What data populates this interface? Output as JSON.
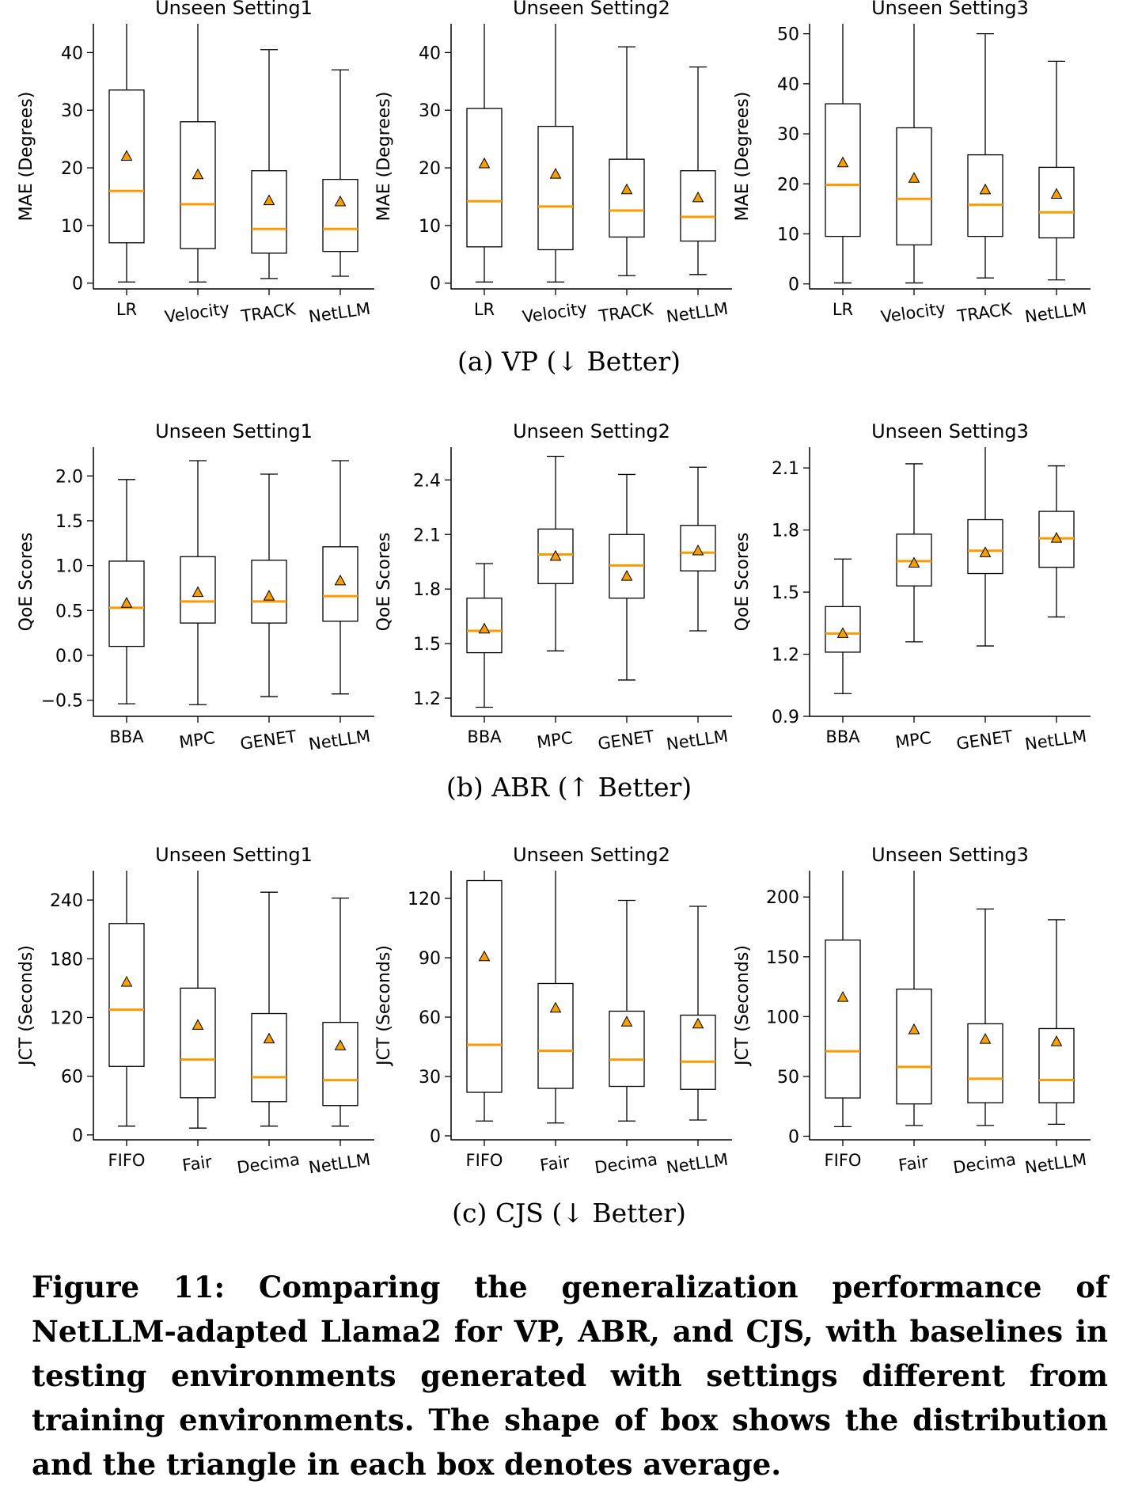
{
  "chart_data": [
    {
      "type": "boxplot",
      "row": "VP",
      "title": "Unseen Setting1",
      "ylabel": "MAE (Degrees)",
      "ylim": [
        -1,
        45
      ],
      "yticks": [
        0,
        10,
        20,
        30,
        40
      ],
      "ytick_labels": [
        "0",
        "10",
        "20",
        "30",
        "40"
      ],
      "categories": [
        "LR",
        "Velocity",
        "TRACK",
        "NetLLM"
      ],
      "boxes": [
        {
          "whisker_low": 0.2,
          "q1": 7,
          "median": 16,
          "q3": 33.5,
          "whisker_high": 45,
          "mean": 22
        },
        {
          "whisker_low": 0.2,
          "q1": 6,
          "median": 13.7,
          "q3": 28,
          "whisker_high": 45,
          "mean": 18.8
        },
        {
          "whisker_low": 0.8,
          "q1": 5.2,
          "median": 9.4,
          "q3": 19.5,
          "whisker_high": 40.5,
          "mean": 14.3
        },
        {
          "whisker_low": 1.2,
          "q1": 5.5,
          "median": 9.4,
          "q3": 18,
          "whisker_high": 37,
          "mean": 14.1
        }
      ]
    },
    {
      "type": "boxplot",
      "row": "VP",
      "title": "Unseen Setting2",
      "ylabel": "MAE (Degrees)",
      "ylim": [
        -1,
        45
      ],
      "yticks": [
        0,
        10,
        20,
        30,
        40
      ],
      "ytick_labels": [
        "0",
        "10",
        "20",
        "30",
        "40"
      ],
      "categories": [
        "LR",
        "Velocity",
        "TRACK",
        "NetLLM"
      ],
      "boxes": [
        {
          "whisker_low": 0.2,
          "q1": 6.3,
          "median": 14.2,
          "q3": 30.3,
          "whisker_high": 45,
          "mean": 20.7
        },
        {
          "whisker_low": 0.2,
          "q1": 5.8,
          "median": 13.3,
          "q3": 27.2,
          "whisker_high": 45,
          "mean": 18.9
        },
        {
          "whisker_low": 1.3,
          "q1": 8,
          "median": 12.6,
          "q3": 21.5,
          "whisker_high": 41,
          "mean": 16.2
        },
        {
          "whisker_low": 1.5,
          "q1": 7.3,
          "median": 11.5,
          "q3": 19.5,
          "whisker_high": 37.5,
          "mean": 14.8
        }
      ]
    },
    {
      "type": "boxplot",
      "row": "VP",
      "title": "Unseen Setting3",
      "ylabel": "MAE (Degrees)",
      "ylim": [
        -1,
        52
      ],
      "yticks": [
        0,
        10,
        20,
        30,
        40,
        50
      ],
      "ytick_labels": [
        "0",
        "10",
        "20",
        "30",
        "40",
        "50"
      ],
      "categories": [
        "LR",
        "Velocity",
        "TRACK",
        "NetLLM"
      ],
      "boxes": [
        {
          "whisker_low": 0.2,
          "q1": 9.5,
          "median": 19.8,
          "q3": 36,
          "whisker_high": 52,
          "mean": 24.2
        },
        {
          "whisker_low": 0.2,
          "q1": 7.8,
          "median": 17,
          "q3": 31.2,
          "whisker_high": 52,
          "mean": 21.1
        },
        {
          "whisker_low": 1.2,
          "q1": 9.5,
          "median": 15.8,
          "q3": 25.8,
          "whisker_high": 50,
          "mean": 18.8
        },
        {
          "whisker_low": 0.8,
          "q1": 9.2,
          "median": 14.3,
          "q3": 23.3,
          "whisker_high": 44.5,
          "mean": 17.9
        }
      ]
    },
    {
      "type": "boxplot",
      "row": "ABR",
      "title": "Unseen Setting1",
      "ylabel": "QoE Scores",
      "ylim": [
        -0.68,
        2.32
      ],
      "yticks": [
        -0.5,
        0.0,
        0.5,
        1.0,
        1.5,
        2.0
      ],
      "ytick_labels": [
        "−0.5",
        "0.0",
        "0.5",
        "1.0",
        "1.5",
        "2.0"
      ],
      "categories": [
        "BBA",
        "MPC",
        "GENET",
        "NetLLM"
      ],
      "boxes": [
        {
          "whisker_low": -0.54,
          "q1": 0.1,
          "median": 0.53,
          "q3": 1.05,
          "whisker_high": 1.96,
          "mean": 0.58
        },
        {
          "whisker_low": -0.55,
          "q1": 0.36,
          "median": 0.6,
          "q3": 1.1,
          "whisker_high": 2.17,
          "mean": 0.7
        },
        {
          "whisker_low": -0.46,
          "q1": 0.36,
          "median": 0.6,
          "q3": 1.06,
          "whisker_high": 2.02,
          "mean": 0.66
        },
        {
          "whisker_low": -0.43,
          "q1": 0.38,
          "median": 0.66,
          "q3": 1.21,
          "whisker_high": 2.17,
          "mean": 0.83
        }
      ]
    },
    {
      "type": "boxplot",
      "row": "ABR",
      "title": "Unseen Setting2",
      "ylabel": "QoE Scores",
      "ylim": [
        1.1,
        2.58
      ],
      "yticks": [
        1.2,
        1.5,
        1.8,
        2.1,
        2.4
      ],
      "ytick_labels": [
        "1.2",
        "1.5",
        "1.8",
        "2.1",
        "2.4"
      ],
      "categories": [
        "BBA",
        "MPC",
        "GENET",
        "NetLLM"
      ],
      "boxes": [
        {
          "whisker_low": 1.15,
          "q1": 1.45,
          "median": 1.57,
          "q3": 1.75,
          "whisker_high": 1.94,
          "mean": 1.58
        },
        {
          "whisker_low": 1.46,
          "q1": 1.83,
          "median": 1.99,
          "q3": 2.13,
          "whisker_high": 2.53,
          "mean": 1.98
        },
        {
          "whisker_low": 1.3,
          "q1": 1.75,
          "median": 1.93,
          "q3": 2.1,
          "whisker_high": 2.43,
          "mean": 1.87
        },
        {
          "whisker_low": 1.57,
          "q1": 1.9,
          "median": 2.0,
          "q3": 2.15,
          "whisker_high": 2.47,
          "mean": 2.01
        }
      ]
    },
    {
      "type": "boxplot",
      "row": "ABR",
      "title": "Unseen Setting3",
      "ylabel": "QoE Scores",
      "ylim": [
        0.9,
        2.2
      ],
      "yticks": [
        0.9,
        1.2,
        1.5,
        1.8,
        2.1
      ],
      "ytick_labels": [
        "0.9",
        "1.2",
        "1.5",
        "1.8",
        "2.1"
      ],
      "categories": [
        "BBA",
        "MPC",
        "GENET",
        "NetLLM"
      ],
      "boxes": [
        {
          "whisker_low": 1.01,
          "q1": 1.21,
          "median": 1.3,
          "q3": 1.43,
          "whisker_high": 1.66,
          "mean": 1.3
        },
        {
          "whisker_low": 1.26,
          "q1": 1.53,
          "median": 1.65,
          "q3": 1.78,
          "whisker_high": 2.12,
          "mean": 1.64
        },
        {
          "whisker_low": 1.24,
          "q1": 1.59,
          "median": 1.7,
          "q3": 1.85,
          "whisker_high": 2.2,
          "mean": 1.69
        },
        {
          "whisker_low": 1.38,
          "q1": 1.62,
          "median": 1.76,
          "q3": 1.89,
          "whisker_high": 2.11,
          "mean": 1.76
        }
      ]
    },
    {
      "type": "boxplot",
      "row": "CJS",
      "title": "Unseen Setting1",
      "ylabel": "JCT (Seconds)",
      "ylim": [
        -5,
        270
      ],
      "yticks": [
        0,
        60,
        120,
        180,
        240
      ],
      "ytick_labels": [
        "0",
        "60",
        "120",
        "180",
        "240"
      ],
      "categories": [
        "FIFO",
        "Fair",
        "Decima",
        "NetLLM"
      ],
      "boxes": [
        {
          "whisker_low": 9,
          "q1": 70,
          "median": 128,
          "q3": 216,
          "whisker_high": 270,
          "mean": 156
        },
        {
          "whisker_low": 7,
          "q1": 38,
          "median": 77,
          "q3": 150,
          "whisker_high": 270,
          "mean": 112
        },
        {
          "whisker_low": 9,
          "q1": 34,
          "median": 59,
          "q3": 124,
          "whisker_high": 248,
          "mean": 98
        },
        {
          "whisker_low": 9,
          "q1": 30,
          "median": 56,
          "q3": 115,
          "whisker_high": 242,
          "mean": 91
        }
      ]
    },
    {
      "type": "boxplot",
      "row": "CJS",
      "title": "Unseen Setting2",
      "ylabel": "JCT (Seconds)",
      "ylim": [
        -2,
        134
      ],
      "yticks": [
        0,
        30,
        60,
        90,
        120
      ],
      "ytick_labels": [
        "0",
        "30",
        "60",
        "90",
        "120"
      ],
      "categories": [
        "FIFO",
        "Fair",
        "Decima",
        "NetLLM"
      ],
      "boxes": [
        {
          "whisker_low": 7.5,
          "q1": 22,
          "median": 46,
          "q3": 129,
          "whisker_high": 134,
          "mean": 90.5
        },
        {
          "whisker_low": 6.5,
          "q1": 24,
          "median": 43,
          "q3": 77,
          "whisker_high": 134,
          "mean": 64.5
        },
        {
          "whisker_low": 7.5,
          "q1": 25,
          "median": 38.5,
          "q3": 63,
          "whisker_high": 119,
          "mean": 57.5
        },
        {
          "whisker_low": 8,
          "q1": 23.5,
          "median": 37.5,
          "q3": 61,
          "whisker_high": 116,
          "mean": 56.5
        }
      ]
    },
    {
      "type": "boxplot",
      "row": "CJS",
      "title": "Unseen Setting3",
      "ylabel": "JCT (Seconds)",
      "ylim": [
        -3,
        222
      ],
      "yticks": [
        0,
        50,
        100,
        150,
        200
      ],
      "ytick_labels": [
        "0",
        "50",
        "100",
        "150",
        "200"
      ],
      "categories": [
        "FIFO",
        "Fair",
        "Decima",
        "NetLLM"
      ],
      "boxes": [
        {
          "whisker_low": 8,
          "q1": 32,
          "median": 71,
          "q3": 164,
          "whisker_high": 222,
          "mean": 116
        },
        {
          "whisker_low": 9,
          "q1": 27,
          "median": 58,
          "q3": 123,
          "whisker_high": 222,
          "mean": 89
        },
        {
          "whisker_low": 9,
          "q1": 28,
          "median": 48,
          "q3": 94,
          "whisker_high": 190,
          "mean": 81
        },
        {
          "whisker_low": 10,
          "q1": 28,
          "median": 47,
          "q3": 90,
          "whisker_high": 181,
          "mean": 79
        }
      ]
    }
  ],
  "captions": {
    "a": "(a)  VP (↓ Better)",
    "b": "(b)  ABR (↑ Better)",
    "c": "(c)  CJS (↓ Better)"
  },
  "figure_caption": "Figure 11: Comparing the generalization performance of NetLLM-adapted Llama2 for VP, ABR, and CJS, with baselines in testing environments generated with settings different from training environments. The shape of box shows the distribution and the triangle in each box denotes average.",
  "colors": {
    "median": "#ff9a00",
    "mean_marker": "#f5a000",
    "box": "#000000"
  }
}
